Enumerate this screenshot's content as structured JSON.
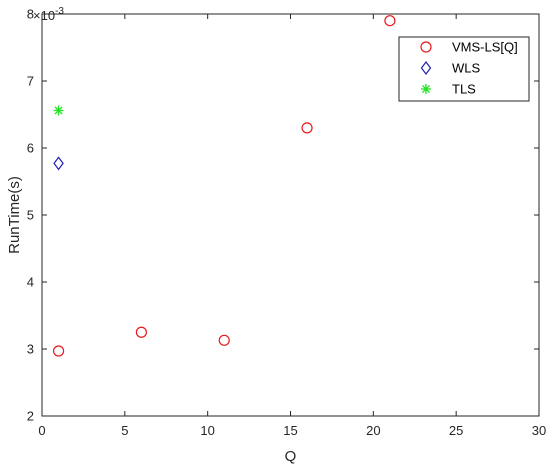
{
  "chart_data": {
    "type": "scatter",
    "title": "",
    "xlabel": "Q",
    "ylabel": "RunTime(s)",
    "xlim": [
      0,
      30
    ],
    "ylim": [
      2,
      8
    ],
    "y_exponent_label": "×10",
    "y_exponent_power": "-3",
    "x_ticks": [
      0,
      5,
      10,
      15,
      20,
      25,
      30
    ],
    "y_ticks": [
      2,
      3,
      4,
      5,
      6,
      7,
      8
    ],
    "grid": false,
    "legend_position": "top-right",
    "series": [
      {
        "name": "VMS-LS[Q]",
        "marker": "circle",
        "color": "#e8191c",
        "points": [
          {
            "x": 1,
            "y": 2.97
          },
          {
            "x": 6,
            "y": 3.25
          },
          {
            "x": 11,
            "y": 3.13
          },
          {
            "x": 16,
            "y": 6.3
          },
          {
            "x": 21,
            "y": 7.9
          }
        ]
      },
      {
        "name": "WLS",
        "marker": "diamond",
        "color": "#1f1fb4",
        "points": [
          {
            "x": 1,
            "y": 5.77
          }
        ]
      },
      {
        "name": "TLS",
        "marker": "asterisk",
        "color": "#22e022",
        "points": [
          {
            "x": 1,
            "y": 6.56
          }
        ]
      }
    ]
  }
}
